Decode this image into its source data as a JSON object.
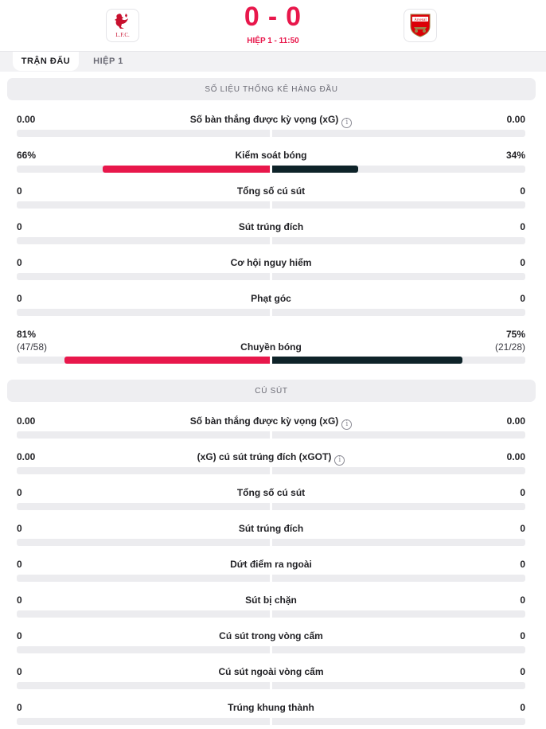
{
  "match": {
    "home_score": "0",
    "separator": "-",
    "away_score": "0",
    "period": "HIỆP 1 - 11:50",
    "home_logo_text": "L.F.C.",
    "away_logo_text": "Arsenal"
  },
  "tabs": [
    {
      "label": "TRẬN ĐẤU",
      "active": true
    },
    {
      "label": "HIỆP 1",
      "active": false
    }
  ],
  "colors": {
    "home": "#e8174b",
    "away": "#0e2329",
    "accent": "#e8174b"
  },
  "sections": [
    {
      "title": "SỐ LIỆU THỐNG KÊ HÀNG ĐẦU",
      "stats": [
        {
          "label": "Số bàn thắng được kỳ vọng (xG)",
          "home": "0.00",
          "away": "0.00",
          "info": true,
          "home_share": 0,
          "away_share": 0
        },
        {
          "label": "Kiểm soát bóng",
          "home": "66%",
          "away": "34%",
          "info": false,
          "home_share": 0.66,
          "away_share": 0.34
        },
        {
          "label": "Tổng số cú sút",
          "home": "0",
          "away": "0",
          "info": false,
          "home_share": 0,
          "away_share": 0
        },
        {
          "label": "Sút trúng đích",
          "home": "0",
          "away": "0",
          "info": false,
          "home_share": 0,
          "away_share": 0
        },
        {
          "label": "Cơ hội nguy hiểm",
          "home": "0",
          "away": "0",
          "info": false,
          "home_share": 0,
          "away_share": 0
        },
        {
          "label": "Phạt góc",
          "home": "0",
          "away": "0",
          "info": false,
          "home_share": 0,
          "away_share": 0
        },
        {
          "label": "Chuyền bóng",
          "home": "81%",
          "away": "75%",
          "home_sub": "(47/58)",
          "away_sub": "(21/28)",
          "info": false,
          "home_share": 0.81,
          "away_share": 0.75
        }
      ]
    },
    {
      "title": "CÚ SÚT",
      "stats": [
        {
          "label": "Số bàn thắng được kỳ vọng (xG)",
          "home": "0.00",
          "away": "0.00",
          "info": true,
          "home_share": 0,
          "away_share": 0
        },
        {
          "label": "(xG) cú sút trúng đích (xGOT)",
          "home": "0.00",
          "away": "0.00",
          "info": true,
          "home_share": 0,
          "away_share": 0
        },
        {
          "label": "Tổng số cú sút",
          "home": "0",
          "away": "0",
          "info": false,
          "home_share": 0,
          "away_share": 0
        },
        {
          "label": "Sút trúng đích",
          "home": "0",
          "away": "0",
          "info": false,
          "home_share": 0,
          "away_share": 0
        },
        {
          "label": "Dứt điểm ra ngoài",
          "home": "0",
          "away": "0",
          "info": false,
          "home_share": 0,
          "away_share": 0
        },
        {
          "label": "Sút bị chặn",
          "home": "0",
          "away": "0",
          "info": false,
          "home_share": 0,
          "away_share": 0
        },
        {
          "label": "Cú sút trong vòng cấm",
          "home": "0",
          "away": "0",
          "info": false,
          "home_share": 0,
          "away_share": 0
        },
        {
          "label": "Cú sút ngoài vòng cấm",
          "home": "0",
          "away": "0",
          "info": false,
          "home_share": 0,
          "away_share": 0
        },
        {
          "label": "Trúng khung thành",
          "home": "0",
          "away": "0",
          "info": false,
          "home_share": 0,
          "away_share": 0
        }
      ]
    }
  ]
}
